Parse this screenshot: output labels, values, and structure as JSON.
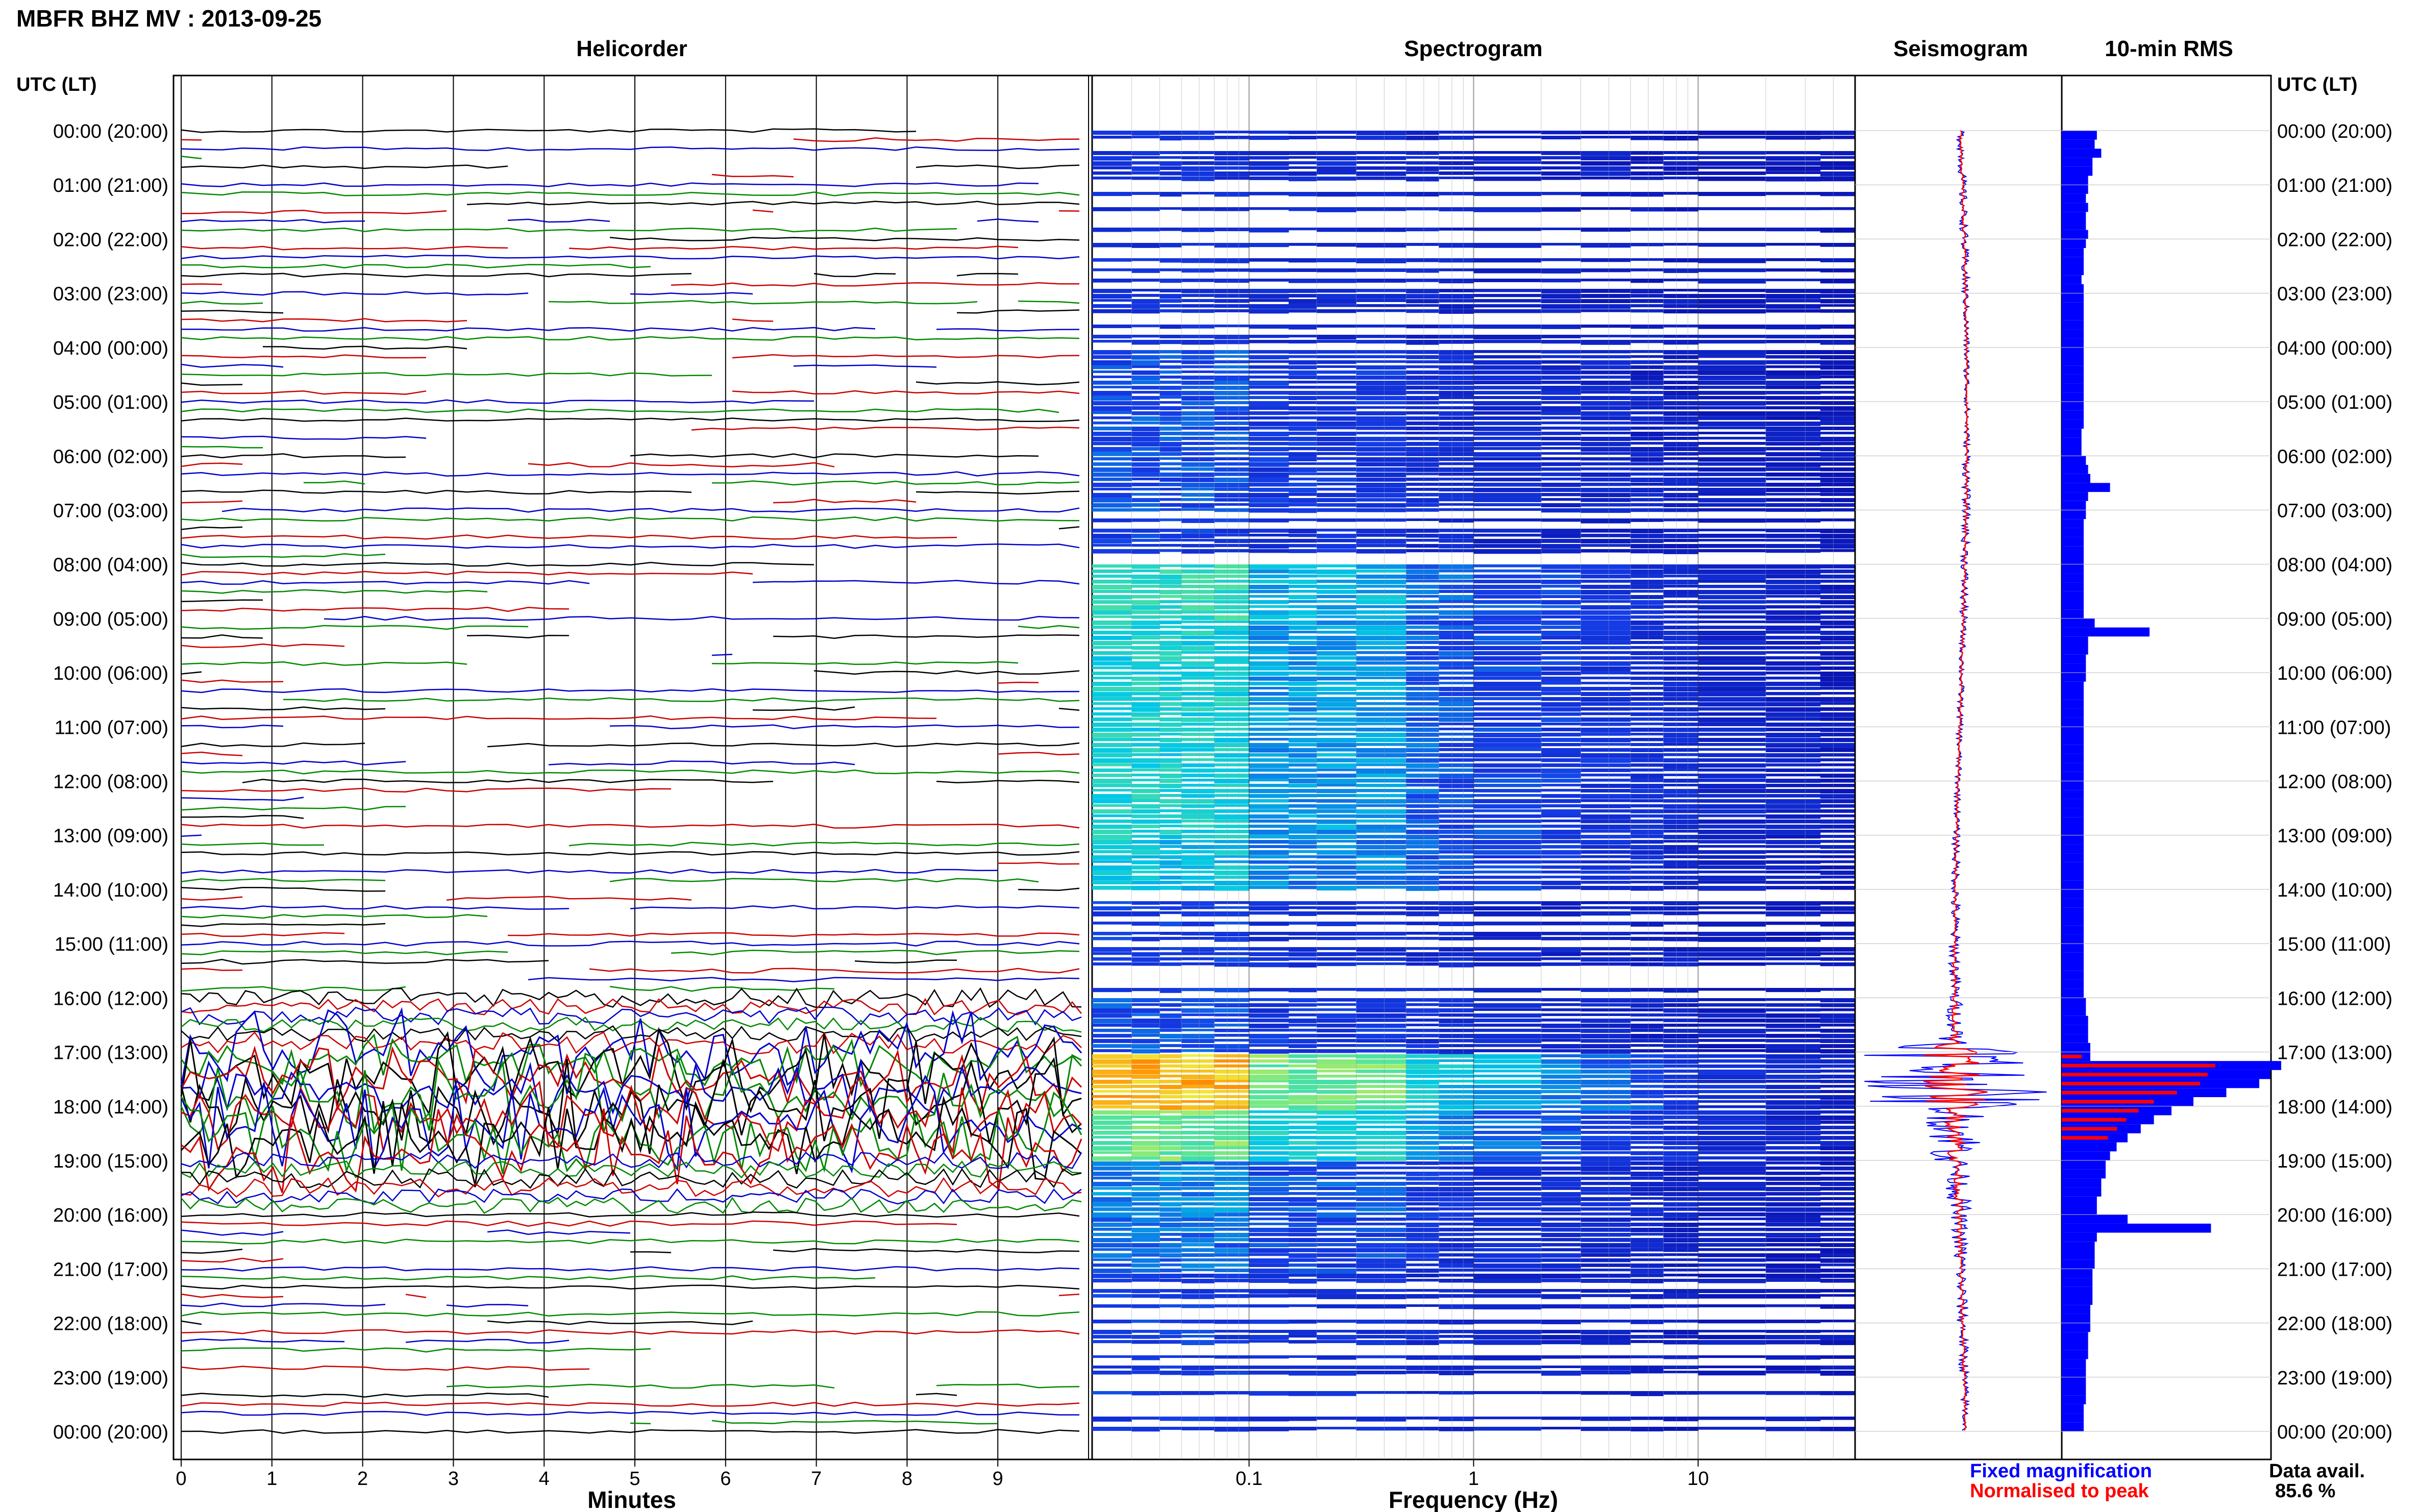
{
  "header": {
    "title": "MBFR BHZ MV : 2013-09-25",
    "utc_lt_left": "UTC (LT)",
    "utc_lt_right": "UTC (LT)"
  },
  "panels": {
    "helicorder": "Helicorder",
    "spectrogram": "Spectrogram",
    "seismogram": "Seismogram",
    "rms": "10-min RMS"
  },
  "axis_labels": {
    "minutes": "Minutes",
    "frequency": "Frequency (Hz)"
  },
  "legend": {
    "fixed": "Fixed magnification",
    "normalised": "Normalised to peak",
    "fixed_color": "#0000ff",
    "normalised_color": "#ff0000"
  },
  "availability": {
    "label": "Data avail.",
    "value": "85.6 %"
  },
  "colors": {
    "trace_colors": [
      "#000000",
      "#cc0000",
      "#0000cc",
      "#008800"
    ],
    "spectrogram_bg": "#0a22c8",
    "rms_fill": "#0000ff",
    "rms_norm": "#ff0000"
  },
  "chart_data": [
    {
      "type": "line",
      "name": "Helicorder",
      "xlabel": "Minutes",
      "x_ticks": [
        "0",
        "1",
        "2",
        "3",
        "4",
        "5",
        "6",
        "7",
        "8",
        "9"
      ],
      "xlim": [
        0,
        10
      ],
      "y_ticks": [
        "00:00 (20:00)",
        "01:00 (21:00)",
        "02:00 (22:00)",
        "03:00 (23:00)",
        "04:00 (00:00)",
        "05:00 (01:00)",
        "06:00 (02:00)",
        "07:00 (03:00)",
        "08:00 (04:00)",
        "09:00 (05:00)",
        "10:00 (06:00)",
        "11:00 (07:00)",
        "12:00 (08:00)",
        "13:00 (09:00)",
        "14:00 (10:00)",
        "15:00 (11:00)",
        "16:00 (12:00)",
        "17:00 (13:00)",
        "18:00 (14:00)",
        "19:00 (15:00)",
        "20:00 (16:00)",
        "21:00 (17:00)",
        "22:00 (18:00)",
        "23:00 (19:00)",
        "00:00 (20:00)"
      ],
      "lines_per_hour": 6,
      "hours": 24,
      "event_hour_activity": [
        0.02,
        0.03,
        0.02,
        0.02,
        0.02,
        0.02,
        0.05,
        0.05,
        0.04,
        0.03,
        0.03,
        0.03,
        0.03,
        0.03,
        0.04,
        0.08,
        0.25,
        1.0,
        0.6,
        0.2,
        0.1,
        0.05,
        0.05,
        0.04
      ]
    },
    {
      "type": "heatmap",
      "name": "Spectrogram",
      "xlabel": "Frequency (Hz)",
      "x_scale": "log",
      "xlim": [
        0.02,
        50
      ],
      "x_ticks": [
        "0.1",
        "1",
        "10"
      ],
      "x_tick_values": [
        0.1,
        1,
        10
      ],
      "hours": 24,
      "intensity_by_hour": [
        0.2,
        0.2,
        0.2,
        0.2,
        0.3,
        0.3,
        0.3,
        0.25,
        0.6,
        0.55,
        0.55,
        0.55,
        0.55,
        0.5,
        0.25,
        0.25,
        0.3,
        0.9,
        0.7,
        0.4,
        0.35,
        0.25,
        0.25,
        0.25
      ]
    },
    {
      "type": "line",
      "name": "Seismogram",
      "hours": 24,
      "peak_hour": 17.0,
      "envelope_by_hour": [
        0.04,
        0.04,
        0.04,
        0.03,
        0.03,
        0.03,
        0.04,
        0.04,
        0.04,
        0.03,
        0.03,
        0.03,
        0.03,
        0.04,
        0.05,
        0.06,
        0.08,
        0.9,
        0.3,
        0.12,
        0.08,
        0.06,
        0.05,
        0.04
      ],
      "legend": [
        "Fixed magnification",
        "Normalised to peak"
      ]
    },
    {
      "type": "bar",
      "name": "10-min RMS",
      "hours": 24,
      "rms_by_10min": [
        0.16,
        0.15,
        0.18,
        0.14,
        0.14,
        0.12,
        0.12,
        0.11,
        0.12,
        0.11,
        0.11,
        0.12,
        0.11,
        0.1,
        0.1,
        0.1,
        0.09,
        0.1,
        0.1,
        0.1,
        0.1,
        0.1,
        0.1,
        0.1,
        0.1,
        0.1,
        0.1,
        0.1,
        0.1,
        0.1,
        0.1,
        0.1,
        0.1,
        0.09,
        0.09,
        0.09,
        0.11,
        0.12,
        0.13,
        0.22,
        0.12,
        0.11,
        0.11,
        0.1,
        0.1,
        0.1,
        0.1,
        0.1,
        0.1,
        0.1,
        0.1,
        0.1,
        0.1,
        0.1,
        0.15,
        0.4,
        0.12,
        0.12,
        0.11,
        0.11,
        0.11,
        0.1,
        0.1,
        0.1,
        0.1,
        0.1,
        0.1,
        0.1,
        0.1,
        0.1,
        0.1,
        0.1,
        0.1,
        0.1,
        0.1,
        0.1,
        0.1,
        0.1,
        0.1,
        0.1,
        0.1,
        0.1,
        0.1,
        0.1,
        0.1,
        0.1,
        0.1,
        0.1,
        0.1,
        0.1,
        0.1,
        0.1,
        0.1,
        0.1,
        0.1,
        0.1,
        0.11,
        0.11,
        0.12,
        0.12,
        0.12,
        0.13,
        0.13,
        1.0,
        0.95,
        0.9,
        0.75,
        0.6,
        0.5,
        0.42,
        0.36,
        0.3,
        0.25,
        0.22,
        0.2,
        0.2,
        0.18,
        0.18,
        0.16,
        0.16,
        0.3,
        0.68,
        0.16,
        0.15,
        0.15,
        0.15,
        0.14,
        0.14,
        0.14,
        0.14,
        0.13,
        0.13,
        0.13,
        0.12,
        0.12,
        0.12,
        0.11,
        0.11,
        0.11,
        0.11,
        0.11,
        0.1,
        0.1,
        0.1
      ],
      "normalised_bars_hour_range": [
        17,
        18.5
      ]
    }
  ]
}
